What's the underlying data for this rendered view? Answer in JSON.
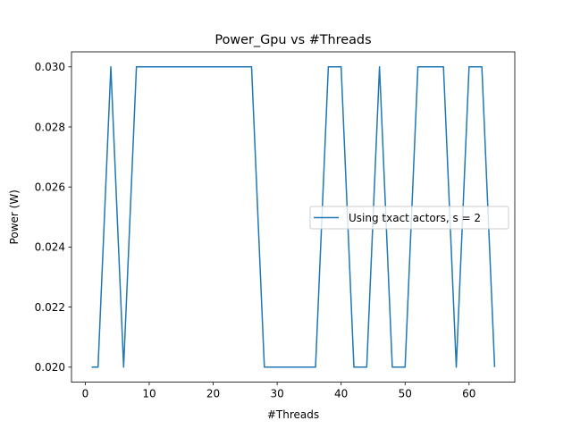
{
  "chart_data": {
    "type": "line",
    "title": "Power_Gpu vs #Threads",
    "xlabel": "#Threads",
    "ylabel": "Power (W)",
    "xlim": [
      -2.15,
      67.15
    ],
    "ylim": [
      0.0195,
      0.0305
    ],
    "xticks": [
      0,
      10,
      20,
      30,
      40,
      50,
      60
    ],
    "xtick_labels": [
      "0",
      "10",
      "20",
      "30",
      "40",
      "50",
      "60"
    ],
    "yticks": [
      0.02,
      0.022,
      0.024,
      0.026,
      0.028,
      0.03
    ],
    "ytick_labels": [
      "0.020",
      "0.022",
      "0.024",
      "0.026",
      "0.028",
      "0.030"
    ],
    "grid": false,
    "legend_position": "center-right",
    "series": [
      {
        "name": "Using txact actors, s = 2",
        "color": "#1f77b4",
        "x": [
          1,
          2,
          4,
          6,
          8,
          10,
          12,
          14,
          16,
          18,
          20,
          22,
          24,
          26,
          28,
          30,
          32,
          34,
          36,
          38,
          40,
          42,
          44,
          46,
          48,
          50,
          52,
          54,
          56,
          58,
          60,
          62,
          64
        ],
        "y": [
          0.02,
          0.02,
          0.03,
          0.02,
          0.03,
          0.03,
          0.03,
          0.03,
          0.03,
          0.03,
          0.03,
          0.03,
          0.03,
          0.03,
          0.02,
          0.02,
          0.02,
          0.02,
          0.02,
          0.03,
          0.03,
          0.02,
          0.02,
          0.03,
          0.02,
          0.02,
          0.03,
          0.03,
          0.03,
          0.02,
          0.03,
          0.03,
          0.02
        ]
      }
    ]
  }
}
